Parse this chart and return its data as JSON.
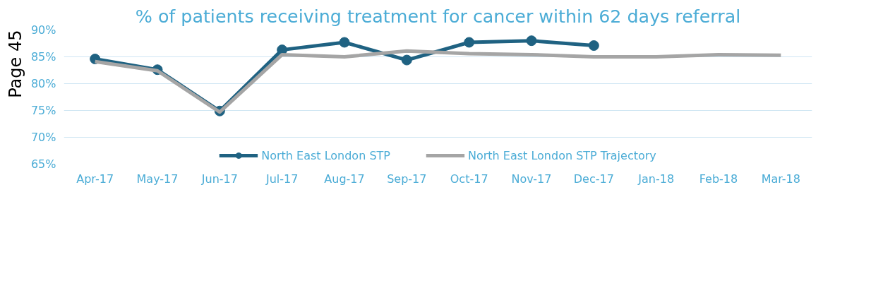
{
  "chart_data": {
    "type": "line",
    "title": "% of patients receiving treatment for cancer within 62 days referral",
    "categories": [
      "Apr-17",
      "May-17",
      "Jun-17",
      "Jul-17",
      "Aug-17",
      "Sep-17",
      "Oct-17",
      "Nov-17",
      "Dec-17",
      "Jan-18",
      "Feb-18",
      "Mar-18"
    ],
    "series": [
      {
        "name": "North East London STP",
        "color": "#1f6282",
        "marker": "circle",
        "values": [
          84.6,
          82.6,
          74.9,
          86.3,
          87.7,
          84.4,
          87.7,
          88.0,
          87.1,
          null,
          null,
          null
        ]
      },
      {
        "name": "North East London STP Trajectory",
        "color": "#a5a5a5",
        "marker": "none",
        "values": [
          84.1,
          82.4,
          74.7,
          85.4,
          85.0,
          86.1,
          85.6,
          85.4,
          85.0,
          85.0,
          85.4,
          85.3
        ]
      }
    ],
    "ylim": [
      65,
      90
    ],
    "yticks": [
      {
        "value": 65,
        "label": "65%"
      },
      {
        "value": 70,
        "label": "70%"
      },
      {
        "value": 75,
        "label": "75%"
      },
      {
        "value": 80,
        "label": "80%"
      },
      {
        "value": 85,
        "label": "85%"
      },
      {
        "value": 90,
        "label": "90%"
      }
    ],
    "grid": "y",
    "legend": "bottom",
    "annotations": [
      "Page 45"
    ]
  }
}
